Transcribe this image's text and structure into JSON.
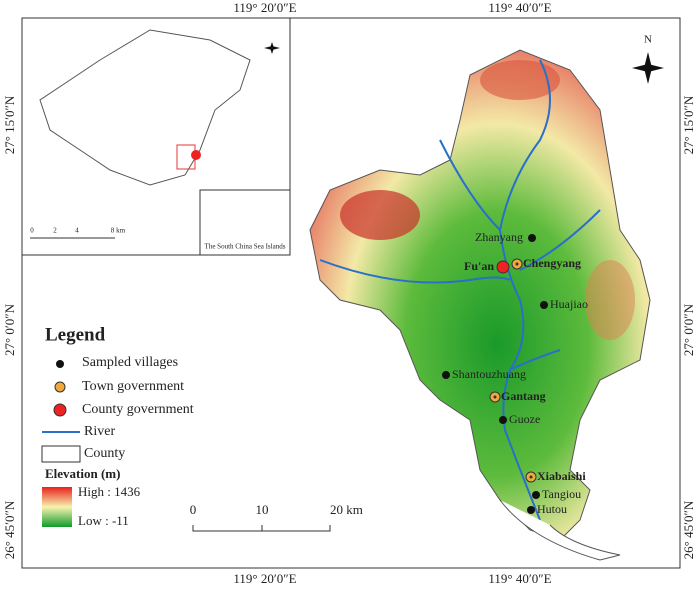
{
  "coords": {
    "top": [
      "119° 20′0″E",
      "119° 40′0″E"
    ],
    "bottom": [
      "119° 20′0″E",
      "119° 40′0″E"
    ],
    "left": [
      "27° 15′0″N",
      "27° 0′0″N",
      "26° 45′0″N"
    ],
    "right": [
      "27° 15′0″N",
      "27° 0′0″N",
      "26° 45′0″N"
    ]
  },
  "inset": {
    "scale": [
      "0",
      "2",
      "4",
      "8 km"
    ],
    "sea_label": "The South China Sea Islands"
  },
  "north": "N",
  "legend": {
    "title": "Legend",
    "items": [
      "Sampled villages",
      "Town government",
      "County government",
      "River",
      "County"
    ],
    "elevation_title": "Elevation (m)",
    "high": "High : 1436",
    "low": "Low : -11"
  },
  "scale_bar": [
    "0",
    "10",
    "20 km"
  ],
  "places": [
    {
      "label": "Zhanyang",
      "kind": "village"
    },
    {
      "label": "Fu'an",
      "kind": "county"
    },
    {
      "label": "Chengyang",
      "kind": "town"
    },
    {
      "label": "Huajiao",
      "kind": "village"
    },
    {
      "label": "Shantouzhuang",
      "kind": "village"
    },
    {
      "label": "Gantang",
      "kind": "town"
    },
    {
      "label": "Guoze",
      "kind": "village"
    },
    {
      "label": "Xiabaishi",
      "kind": "town"
    },
    {
      "label": "Tangiou",
      "kind": "village"
    },
    {
      "label": "Hutou",
      "kind": "village"
    }
  ]
}
